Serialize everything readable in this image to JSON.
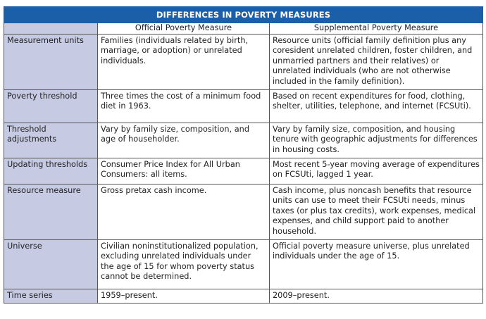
{
  "table": {
    "title": "DIFFERENCES IN POVERTY MEASURES",
    "columns": [
      "Official Poverty Measure",
      "Supplemental Poverty Measure"
    ],
    "rows": [
      {
        "label": "Measurement units",
        "official": "Families (individuals related by birth, marriage, or adoption) or unrelated individuals.",
        "supplemental": "Resource units (official family definition plus any coresident unrelated children, foster children, and unmarried partners and their relatives) or unrelated individuals (who are not otherwise included in the family definition)."
      },
      {
        "label": "Poverty threshold",
        "official": "Three times the cost of a minimum food diet in 1963.",
        "supplemental": "Based on recent expenditures for food, clothing, shelter, utilities, telephone, and internet (FCSUti)."
      },
      {
        "label": "Threshold adjustments",
        "official": "Vary by family size, composition, and age of householder.",
        "supplemental": "Vary by family size, composition, and housing tenure with geographic adjustments for differences in housing costs."
      },
      {
        "label": "Updating thresholds",
        "official": "Consumer Price Index for All Urban Consumers: all items.",
        "supplemental": "Most recent 5-year moving average of expenditures on FCSUti, lagged 1 year."
      },
      {
        "label": "Resource measure",
        "official": "Gross pretax cash income.",
        "supplemental": "Cash income, plus noncash benefits that resource units can use to meet their FCSUti needs, minus taxes (or plus tax credits), work expenses, medical expenses, and child support paid to another household."
      },
      {
        "label": "Universe",
        "official": "Civilian noninstitutionalized population, excluding unrelated individuals under the age of 15 for whom poverty status cannot be determined.",
        "supplemental": "Official poverty measure universe, plus unrelated individuals under the age of 15."
      },
      {
        "label": "Time series",
        "official": "1959–present.",
        "supplemental": "2009–present."
      }
    ]
  },
  "colors": {
    "title_bg": "#1a5fa8",
    "label_bg": "#c6cbe3"
  }
}
